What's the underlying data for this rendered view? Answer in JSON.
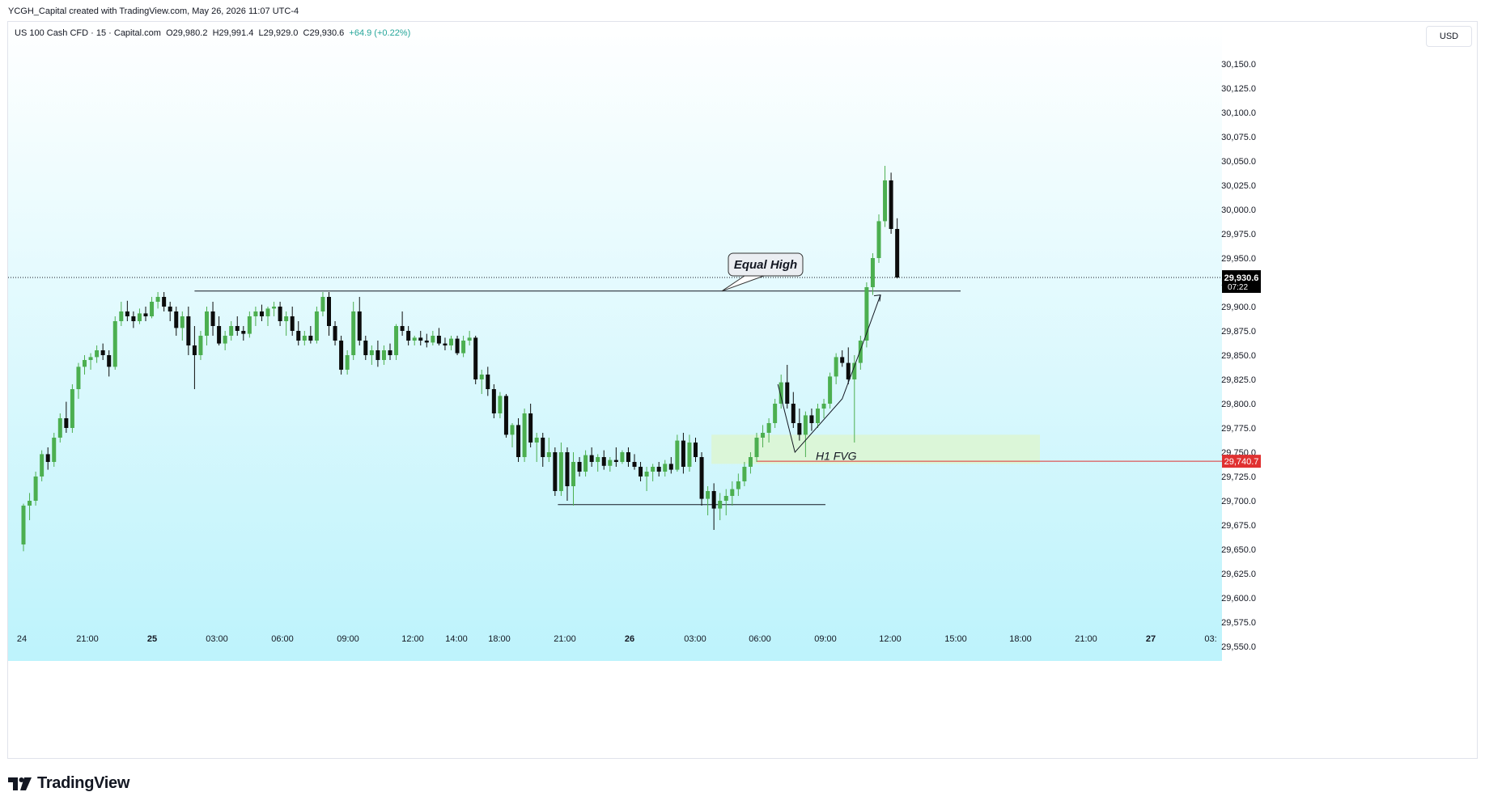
{
  "header": {
    "attribution": "YCGH_Capital created with TradingView.com, May 26, 2026 11:07 UTC-4"
  },
  "symbol": {
    "name": "US 100 Cash CFD · 15 · Capital.com",
    "open": "O29,980.2",
    "high": "H29,991.4",
    "low": "L29,929.0",
    "close": "C29,930.6",
    "change": "+64.9 (+0.22%)"
  },
  "price_axis": {
    "currency": "USD",
    "last_price_label": "29,930.6",
    "countdown": "07:22",
    "marker_label": "29,740.7"
  },
  "footer": {
    "brand": "TradingView"
  },
  "colors": {
    "bull": "#4caf50",
    "bear": "#0c0c0c",
    "bg_top": "#ffffff",
    "bg_bottom": "#b3f1fb",
    "red_line": "#e03131",
    "fvg_fill": "#dcf5d4",
    "last_price_tag": "#000000"
  },
  "chart_data": {
    "type": "candlestick",
    "y_axis": {
      "range": [
        29535,
        30185
      ],
      "ticks": [
        "29,550.0",
        "29,575.0",
        "29,600.0",
        "29,625.0",
        "29,650.0",
        "29,675.0",
        "29,700.0",
        "29,725.0",
        "29,750.0",
        "29,775.0",
        "29,800.0",
        "29,825.0",
        "29,850.0",
        "29,875.0",
        "29,900.0",
        "29,925.0",
        "29,950.0",
        "29,975.0",
        "30,000.0",
        "30,025.0",
        "30,050.0",
        "30,075.0",
        "30,100.0",
        "30,125.0",
        "30,150.0"
      ]
    },
    "x_axis": {
      "labels": [
        "24",
        "21:00",
        "25",
        "03:00",
        "06:00",
        "09:00",
        "12:00",
        "14:00",
        "18:00",
        "21:00",
        "26",
        "03:00",
        "06:00",
        "09:00",
        "12:00",
        "15:00",
        "18:00",
        "21:00",
        "27",
        "03:"
      ]
    },
    "candles": [
      [
        29655,
        29697,
        29648,
        29695
      ],
      [
        29695,
        29708,
        29680,
        29700
      ],
      [
        29700,
        29730,
        29695,
        29725
      ],
      [
        29725,
        29752,
        29720,
        29748
      ],
      [
        29748,
        29755,
        29732,
        29740
      ],
      [
        29740,
        29770,
        29735,
        29765
      ],
      [
        29765,
        29790,
        29760,
        29785
      ],
      [
        29785,
        29802,
        29770,
        29775
      ],
      [
        29775,
        29820,
        29770,
        29815
      ],
      [
        29815,
        29842,
        29805,
        29838
      ],
      [
        29838,
        29850,
        29830,
        29845
      ],
      [
        29845,
        29852,
        29835,
        29848
      ],
      [
        29848,
        29860,
        29842,
        29855
      ],
      [
        29855,
        29862,
        29845,
        29850
      ],
      [
        29850,
        29855,
        29828,
        29838
      ],
      [
        29838,
        29890,
        29835,
        29885
      ],
      [
        29885,
        29905,
        29880,
        29895
      ],
      [
        29895,
        29906,
        29885,
        29890
      ],
      [
        29890,
        29895,
        29878,
        29885
      ],
      [
        29885,
        29898,
        29882,
        29893
      ],
      [
        29893,
        29900,
        29885,
        29890
      ],
      [
        29890,
        29910,
        29888,
        29905
      ],
      [
        29905,
        29915,
        29898,
        29910
      ],
      [
        29910,
        29915,
        29895,
        29900
      ],
      [
        29900,
        29905,
        29885,
        29895
      ],
      [
        29895,
        29900,
        29870,
        29878
      ],
      [
        29878,
        29895,
        29865,
        29890
      ],
      [
        29890,
        29900,
        29850,
        29860
      ],
      [
        29860,
        29880,
        29815,
        29850
      ],
      [
        29850,
        29875,
        29845,
        29870
      ],
      [
        29870,
        29900,
        29860,
        29895
      ],
      [
        29895,
        29905,
        29870,
        29880
      ],
      [
        29880,
        29890,
        29860,
        29862
      ],
      [
        29862,
        29875,
        29855,
        29870
      ],
      [
        29870,
        29885,
        29865,
        29880
      ],
      [
        29880,
        29890,
        29870,
        29875
      ],
      [
        29875,
        29880,
        29865,
        29872
      ],
      [
        29872,
        29895,
        29868,
        29890
      ],
      [
        29890,
        29900,
        29880,
        29895
      ],
      [
        29895,
        29902,
        29885,
        29890
      ],
      [
        29890,
        29900,
        29880,
        29898
      ],
      [
        29898,
        29905,
        29890,
        29900
      ],
      [
        29900,
        29905,
        29880,
        29885
      ],
      [
        29885,
        29895,
        29870,
        29890
      ],
      [
        29890,
        29900,
        29870,
        29875
      ],
      [
        29875,
        29885,
        29860,
        29865
      ],
      [
        29865,
        29875,
        29860,
        29870
      ],
      [
        29870,
        29880,
        29862,
        29865
      ],
      [
        29865,
        29900,
        29862,
        29895
      ],
      [
        29895,
        29915,
        29890,
        29910
      ],
      [
        29910,
        29915,
        29870,
        29880
      ],
      [
        29880,
        29885,
        29860,
        29865
      ],
      [
        29865,
        29870,
        29830,
        29835
      ],
      [
        29835,
        29855,
        29830,
        29850
      ],
      [
        29850,
        29905,
        29845,
        29895
      ],
      [
        29895,
        29910,
        29860,
        29865
      ],
      [
        29865,
        29870,
        29845,
        29850
      ],
      [
        29850,
        29860,
        29840,
        29855
      ],
      [
        29855,
        29865,
        29838,
        29845
      ],
      [
        29845,
        29860,
        29840,
        29855
      ],
      [
        29855,
        29862,
        29845,
        29850
      ],
      [
        29850,
        29882,
        29845,
        29880
      ],
      [
        29880,
        29895,
        29870,
        29875
      ],
      [
        29875,
        29880,
        29860,
        29865
      ],
      [
        29865,
        29870,
        29860,
        29868
      ],
      [
        29868,
        29875,
        29860,
        29865
      ],
      [
        29865,
        29872,
        29858,
        29863
      ],
      [
        29863,
        29875,
        29860,
        29870
      ],
      [
        29870,
        29878,
        29860,
        29862
      ],
      [
        29862,
        29868,
        29855,
        29860
      ],
      [
        29860,
        29870,
        29855,
        29867
      ],
      [
        29867,
        29870,
        29850,
        29852
      ],
      [
        29852,
        29870,
        29848,
        29865
      ],
      [
        29865,
        29875,
        29860,
        29868
      ],
      [
        29868,
        29870,
        29820,
        29825
      ],
      [
        29825,
        29835,
        29810,
        29830
      ],
      [
        29830,
        29838,
        29808,
        29815
      ],
      [
        29815,
        29820,
        29785,
        29790
      ],
      [
        29790,
        29812,
        29785,
        29808
      ],
      [
        29808,
        29810,
        29765,
        29768
      ],
      [
        29768,
        29780,
        29755,
        29778
      ],
      [
        29778,
        29785,
        29740,
        29745
      ],
      [
        29745,
        29795,
        29740,
        29790
      ],
      [
        29790,
        29800,
        29755,
        29760
      ],
      [
        29760,
        29770,
        29740,
        29765
      ],
      [
        29765,
        29770,
        29735,
        29745
      ],
      [
        29745,
        29765,
        29740,
        29750
      ],
      [
        29750,
        29755,
        29705,
        29710
      ],
      [
        29710,
        29760,
        29705,
        29750
      ],
      [
        29750,
        29755,
        29700,
        29715
      ],
      [
        29715,
        29750,
        29695,
        29740
      ],
      [
        29740,
        29745,
        29725,
        29730
      ],
      [
        29730,
        29752,
        29725,
        29747
      ],
      [
        29747,
        29755,
        29735,
        29740
      ],
      [
        29740,
        29748,
        29730,
        29745
      ],
      [
        29745,
        29752,
        29732,
        29736
      ],
      [
        29736,
        29745,
        29730,
        29742
      ],
      [
        29742,
        29755,
        29735,
        29740
      ],
      [
        29740,
        29752,
        29738,
        29750
      ],
      [
        29750,
        29755,
        29735,
        29740
      ],
      [
        29740,
        29748,
        29732,
        29735
      ],
      [
        29735,
        29740,
        29720,
        29725
      ],
      [
        29725,
        29735,
        29710,
        29730
      ],
      [
        29730,
        29738,
        29720,
        29735
      ],
      [
        29735,
        29740,
        29725,
        29730
      ],
      [
        29730,
        29742,
        29725,
        29738
      ],
      [
        29738,
        29745,
        29728,
        29732
      ],
      [
        29732,
        29768,
        29730,
        29762
      ],
      [
        29762,
        29770,
        29728,
        29735
      ],
      [
        29735,
        29768,
        29730,
        29760
      ],
      [
        29760,
        29765,
        29740,
        29745
      ],
      [
        29745,
        29750,
        29695,
        29702
      ],
      [
        29702,
        29715,
        29685,
        29710
      ],
      [
        29710,
        29718,
        29670,
        29692
      ],
      [
        29692,
        29708,
        29680,
        29700
      ],
      [
        29700,
        29712,
        29685,
        29705
      ],
      [
        29705,
        29720,
        29695,
        29712
      ],
      [
        29712,
        29728,
        29705,
        29720
      ],
      [
        29720,
        29740,
        29715,
        29735
      ],
      [
        29735,
        29750,
        29728,
        29745
      ],
      [
        29745,
        29770,
        29740,
        29765
      ],
      [
        29765,
        29778,
        29755,
        29770
      ],
      [
        29770,
        29785,
        29760,
        29780
      ],
      [
        29780,
        29805,
        29775,
        29800
      ],
      [
        29800,
        29830,
        29795,
        29822
      ],
      [
        29822,
        29840,
        29795,
        29800
      ],
      [
        29800,
        29812,
        29775,
        29780
      ],
      [
        29780,
        29795,
        29762,
        29768
      ],
      [
        29768,
        29792,
        29745,
        29788
      ],
      [
        29788,
        29795,
        29772,
        29780
      ],
      [
        29780,
        29800,
        29775,
        29795
      ],
      [
        29795,
        29805,
        29785,
        29800
      ],
      [
        29800,
        29832,
        29795,
        29828
      ],
      [
        29828,
        29852,
        29820,
        29848
      ],
      [
        29848,
        29855,
        29838,
        29842
      ],
      [
        29842,
        29858,
        29820,
        29825
      ],
      [
        29825,
        29850,
        29760,
        29842
      ],
      [
        29842,
        29870,
        29835,
        29865
      ],
      [
        29865,
        29925,
        29858,
        29920
      ],
      [
        29920,
        29955,
        29912,
        29950
      ],
      [
        29950,
        29995,
        29945,
        29988
      ],
      [
        29988,
        30045,
        29982,
        30030
      ],
      [
        30030,
        30038,
        29975,
        29980
      ],
      [
        29980,
        29991,
        29929,
        29930
      ]
    ],
    "annotations": {
      "equal_high": {
        "label": "Equal High",
        "price": 29916
      },
      "fvg": {
        "label": "H1 FVG",
        "top": 29768,
        "bottom": 29738
      },
      "sell_side_line": {
        "price": 29696
      },
      "red_level": {
        "price": 29740.7
      }
    }
  }
}
